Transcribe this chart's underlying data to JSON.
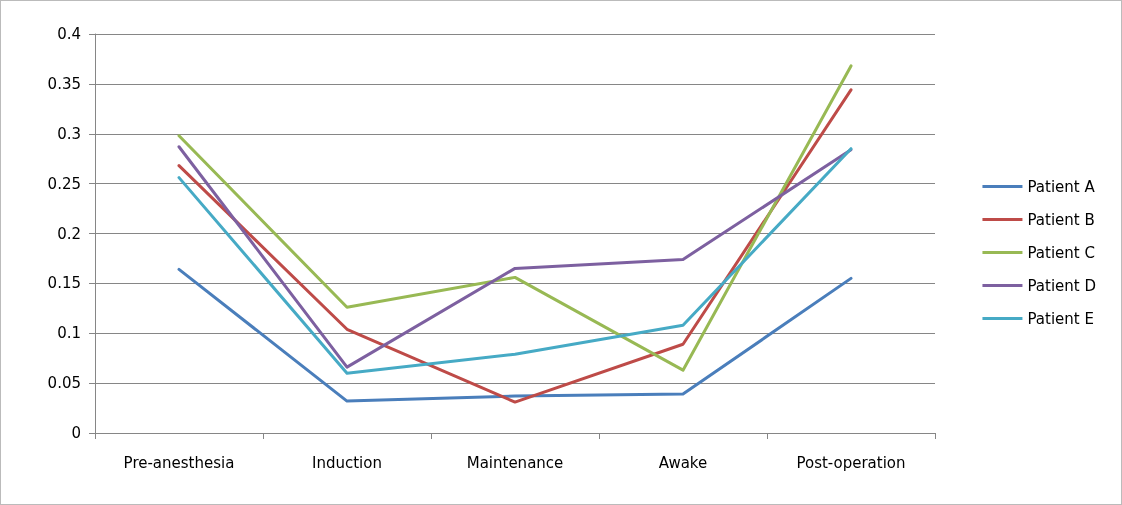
{
  "chart_data": {
    "type": "line",
    "categories": [
      "Pre-anesthesia",
      "Induction",
      "Maintenance",
      "Awake",
      "Post-operation"
    ],
    "series": [
      {
        "name": "Patient A",
        "color": "#4a7ebb",
        "values": [
          0.164,
          0.032,
          0.037,
          0.039,
          0.155
        ]
      },
      {
        "name": "Patient B",
        "color": "#be4b48",
        "values": [
          0.268,
          0.104,
          0.031,
          0.089,
          0.344
        ]
      },
      {
        "name": "Patient C",
        "color": "#98b954",
        "values": [
          0.298,
          0.126,
          0.156,
          0.063,
          0.368
        ]
      },
      {
        "name": "Patient D",
        "color": "#7d60a0",
        "values": [
          0.287,
          0.066,
          0.165,
          0.174,
          0.284
        ]
      },
      {
        "name": "Patient E",
        "color": "#46aac5",
        "values": [
          0.256,
          0.06,
          0.079,
          0.108,
          0.285
        ]
      }
    ],
    "ylim": [
      0,
      0.4
    ],
    "yticks": [
      0,
      0.05,
      0.1,
      0.15,
      0.2,
      0.25,
      0.3,
      0.35,
      0.4
    ],
    "grid": "y",
    "legend": "right",
    "marker": "none",
    "line_style": "solid"
  }
}
